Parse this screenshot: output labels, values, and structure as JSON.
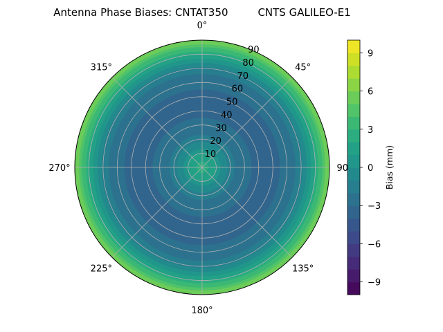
{
  "chart_data": {
    "type": "heatmap",
    "projection": "polar",
    "title": "Antenna Phase Biases: CNTAT350         CNTS GALILEO-E1",
    "azimuth_ticks": [
      "0°",
      "45°",
      "90°",
      "135°",
      "180°",
      "225°",
      "270°",
      "315°"
    ],
    "azimuth_angles": [
      0,
      45,
      90,
      135,
      180,
      225,
      270,
      315
    ],
    "zenith_ticks": [
      "10",
      "20",
      "30",
      "40",
      "50",
      "60",
      "70",
      "80",
      "90"
    ],
    "zenith_values": [
      10,
      20,
      30,
      40,
      50,
      60,
      70,
      80,
      90
    ],
    "zenith_range": [
      0,
      90
    ],
    "azimuth_direction": "clockwise",
    "azimuth_zero": "top",
    "grid": true,
    "colormap": "viridis",
    "colorbar": {
      "label": "Bias (mm)",
      "range": [
        -10,
        10
      ],
      "levels": 20,
      "tick_values": [
        -9,
        -6,
        -3,
        0,
        3,
        6,
        9
      ],
      "tick_labels": [
        "−9",
        "−6",
        "−3",
        "0",
        "3",
        "6",
        "9"
      ]
    },
    "radial_profile": {
      "zenith": [
        0,
        5,
        10,
        15,
        20,
        25,
        30,
        40,
        50,
        60,
        65,
        70,
        75,
        80,
        85,
        90
      ],
      "bias": [
        2.3,
        1.9,
        0.9,
        -0.4,
        -1.5,
        -2.3,
        -2.8,
        -3.2,
        -3.2,
        -2.8,
        -2.2,
        -1.2,
        0.2,
        2.0,
        4.0,
        6.2
      ]
    }
  }
}
